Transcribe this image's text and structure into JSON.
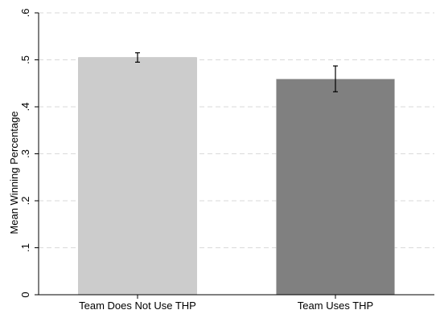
{
  "chart_data": {
    "type": "bar",
    "categories": [
      "Team Does Not Use THP",
      "Team Uses THP"
    ],
    "values": [
      0.505,
      0.459
    ],
    "error_low": [
      0.495,
      0.432
    ],
    "error_high": [
      0.515,
      0.487
    ],
    "ylabel": "Mean Winning Percentage",
    "xlabel": "",
    "ylim": [
      0,
      0.6
    ],
    "yticks": [
      0,
      0.1,
      0.2,
      0.3,
      0.4,
      0.5,
      0.6
    ],
    "ytick_labels": [
      "0",
      ".1",
      ".2",
      ".3",
      ".4",
      ".5",
      ".6"
    ],
    "grid": "horizontal dashed",
    "legend": "none",
    "colors": {
      "bars": [
        "#cccccc",
        "#808080"
      ],
      "grid": "#d9d9d9",
      "axis": "#000000",
      "error_bar": "#000000"
    }
  }
}
